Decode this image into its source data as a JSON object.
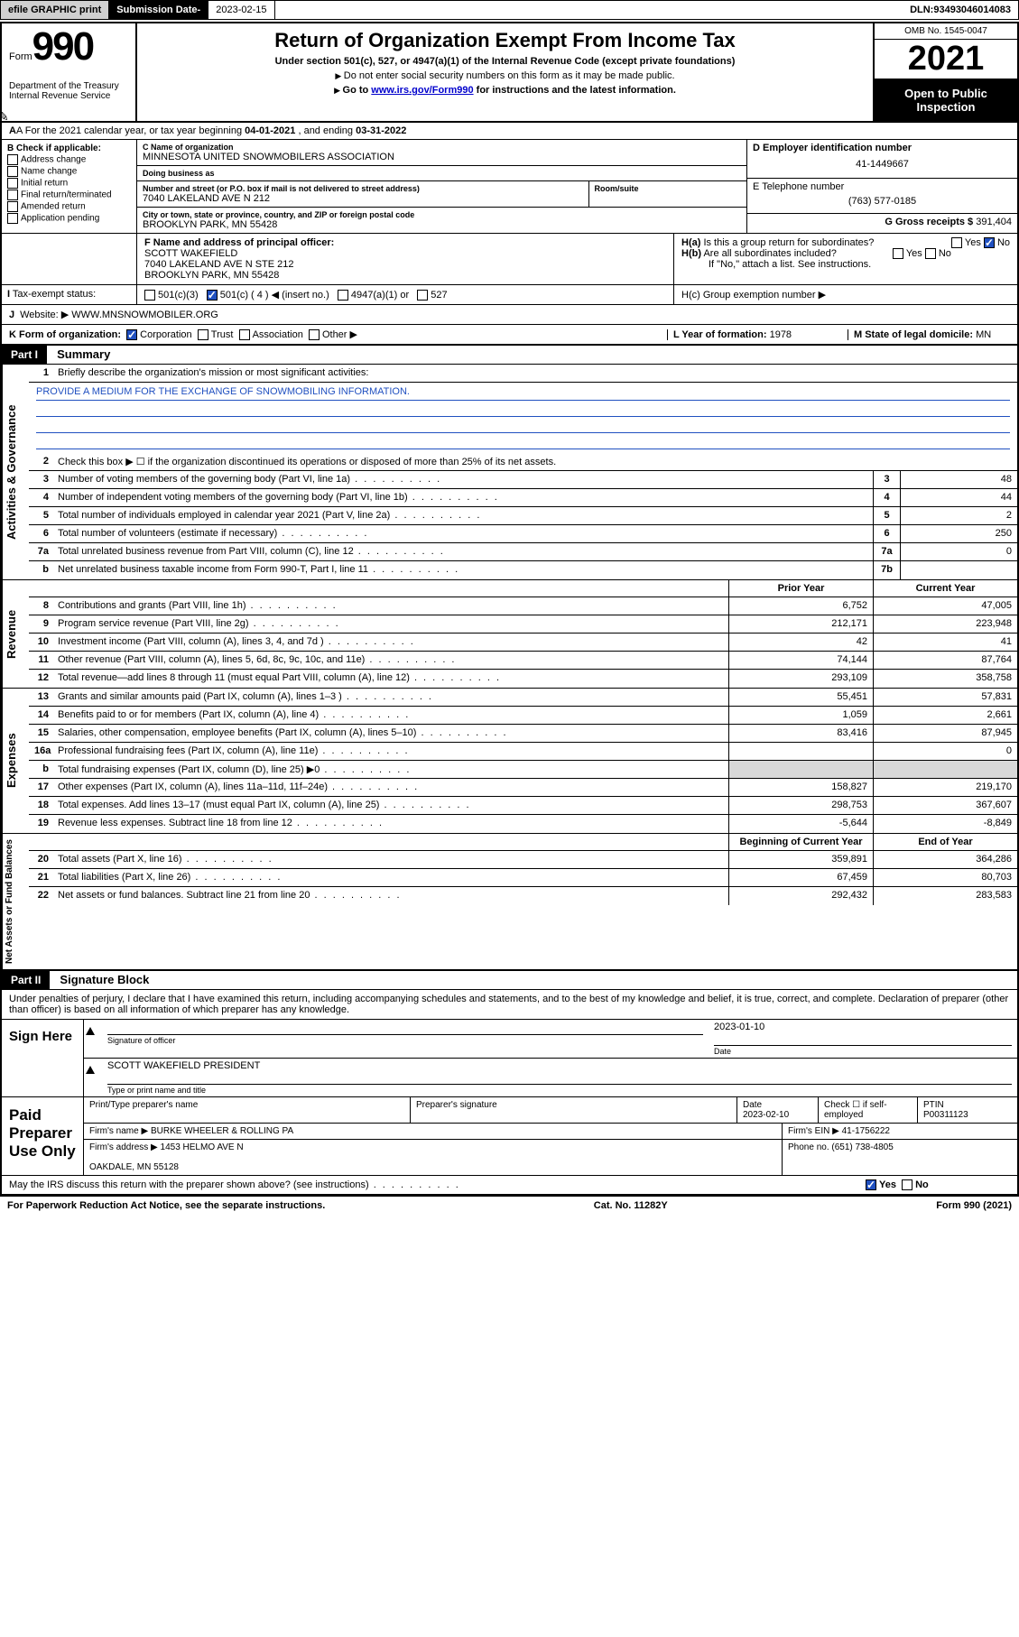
{
  "topbar": {
    "efile": "efile GRAPHIC print",
    "sub_lbl": "Submission Date",
    "sub_val": "2023-02-15",
    "dln_lbl": "DLN:",
    "dln_val": "93493046014083"
  },
  "header": {
    "form_word": "Form",
    "form_num": "990",
    "dept": "Department of the Treasury\nInternal Revenue Service",
    "title": "Return of Organization Exempt From Income Tax",
    "sub": "Under section 501(c), 527, or 4947(a)(1) of the Internal Revenue Code (except private foundations)",
    "sub2": "Do not enter social security numbers on this form as it may be made public.",
    "sub3_a": "Go to ",
    "sub3_link": "www.irs.gov/Form990",
    "sub3_b": " for instructions and the latest information.",
    "omb": "OMB No. 1545-0047",
    "year": "2021",
    "inspect": "Open to Public Inspection"
  },
  "row_a": {
    "text_a": "A For the 2021 calendar year, or tax year beginning ",
    "begin": "04-01-2021",
    "text_b": " , and ending ",
    "end": "03-31-2022"
  },
  "col_b": {
    "hdr": "B Check if applicable:",
    "items": [
      "Address change",
      "Name change",
      "Initial return",
      "Final return/terminated",
      "Amended return",
      "Application pending"
    ]
  },
  "c": {
    "name_lbl": "C Name of organization",
    "name": "MINNESOTA UNITED SNOWMOBILERS ASSOCIATION",
    "dba_lbl": "Doing business as",
    "dba": "",
    "street_lbl": "Number and street (or P.O. box if mail is not delivered to street address)",
    "street": "7040 LAKELAND AVE N 212",
    "room_lbl": "Room/suite",
    "city_lbl": "City or town, state or province, country, and ZIP or foreign postal code",
    "city": "BROOKLYN PARK, MN  55428"
  },
  "d": {
    "lbl": "D Employer identification number",
    "val": "41-1449667"
  },
  "e": {
    "lbl": "E Telephone number",
    "val": "(763) 577-0185"
  },
  "g": {
    "lbl": "G Gross receipts $",
    "val": "391,404"
  },
  "f": {
    "lbl": "F Name and address of principal officer:",
    "name": "SCOTT WAKEFIELD",
    "addr": "7040 LAKELAND AVE N STE 212\nBROOKLYN PARK, MN  55428"
  },
  "h": {
    "a": "H(a)  Is this a group return for subordinates?",
    "b": "H(b)  Are all subordinates included?",
    "b_note": "If \"No,\" attach a list. See instructions.",
    "c": "H(c)  Group exemption number ▶",
    "yes": "Yes",
    "no": "No"
  },
  "i": {
    "lbl": "Tax-exempt status:",
    "opts": [
      "501(c)(3)",
      "501(c) ( 4 ) ◀ (insert no.)",
      "4947(a)(1) or",
      "527"
    ]
  },
  "j": {
    "lbl": "Website: ▶",
    "val": "WWW.MNSNOWMOBILER.ORG"
  },
  "k": {
    "lbl": "K Form of organization:",
    "opts": [
      "Corporation",
      "Trust",
      "Association",
      "Other ▶"
    ]
  },
  "l": {
    "lbl": "L Year of formation:",
    "val": "1978"
  },
  "m": {
    "lbl": "M State of legal domicile:",
    "val": "MN"
  },
  "part1": {
    "num": "Part I",
    "title": "Summary"
  },
  "gov": {
    "tab": "Activities & Governance",
    "l1": "Briefly describe the organization's mission or most significant activities:",
    "mission": "PROVIDE A MEDIUM FOR THE EXCHANGE OF SNOWMOBILING INFORMATION.",
    "l2": "Check this box ▶ ☐  if the organization discontinued its operations or disposed of more than 25% of its net assets.",
    "rows": [
      {
        "n": "3",
        "t": "Number of voting members of the governing body (Part VI, line 1a)",
        "b": "3",
        "v": "48"
      },
      {
        "n": "4",
        "t": "Number of independent voting members of the governing body (Part VI, line 1b)",
        "b": "4",
        "v": "44"
      },
      {
        "n": "5",
        "t": "Total number of individuals employed in calendar year 2021 (Part V, line 2a)",
        "b": "5",
        "v": "2"
      },
      {
        "n": "6",
        "t": "Total number of volunteers (estimate if necessary)",
        "b": "6",
        "v": "250"
      },
      {
        "n": "7a",
        "t": "Total unrelated business revenue from Part VIII, column (C), line 12",
        "b": "7a",
        "v": "0"
      },
      {
        "n": "b",
        "t": "Net unrelated business taxable income from Form 990-T, Part I, line 11",
        "b": "7b",
        "v": ""
      }
    ]
  },
  "colhdr": {
    "prior": "Prior Year",
    "curr": "Current Year"
  },
  "rev": {
    "tab": "Revenue",
    "rows": [
      {
        "n": "8",
        "t": "Contributions and grants (Part VIII, line 1h)",
        "p": "6,752",
        "c": "47,005"
      },
      {
        "n": "9",
        "t": "Program service revenue (Part VIII, line 2g)",
        "p": "212,171",
        "c": "223,948"
      },
      {
        "n": "10",
        "t": "Investment income (Part VIII, column (A), lines 3, 4, and 7d )",
        "p": "42",
        "c": "41"
      },
      {
        "n": "11",
        "t": "Other revenue (Part VIII, column (A), lines 5, 6d, 8c, 9c, 10c, and 11e)",
        "p": "74,144",
        "c": "87,764"
      },
      {
        "n": "12",
        "t": "Total revenue—add lines 8 through 11 (must equal Part VIII, column (A), line 12)",
        "p": "293,109",
        "c": "358,758"
      }
    ]
  },
  "exp": {
    "tab": "Expenses",
    "rows": [
      {
        "n": "13",
        "t": "Grants and similar amounts paid (Part IX, column (A), lines 1–3 )",
        "p": "55,451",
        "c": "57,831"
      },
      {
        "n": "14",
        "t": "Benefits paid to or for members (Part IX, column (A), line 4)",
        "p": "1,059",
        "c": "2,661"
      },
      {
        "n": "15",
        "t": "Salaries, other compensation, employee benefits (Part IX, column (A), lines 5–10)",
        "p": "83,416",
        "c": "87,945"
      },
      {
        "n": "16a",
        "t": "Professional fundraising fees (Part IX, column (A), line 11e)",
        "p": "",
        "c": "0"
      },
      {
        "n": "b",
        "t": "Total fundraising expenses (Part IX, column (D), line 25) ▶0",
        "p": "shade",
        "c": "shade"
      },
      {
        "n": "17",
        "t": "Other expenses (Part IX, column (A), lines 11a–11d, 11f–24e)",
        "p": "158,827",
        "c": "219,170"
      },
      {
        "n": "18",
        "t": "Total expenses. Add lines 13–17 (must equal Part IX, column (A), line 25)",
        "p": "298,753",
        "c": "367,607"
      },
      {
        "n": "19",
        "t": "Revenue less expenses. Subtract line 18 from line 12",
        "p": "-5,644",
        "c": "-8,849"
      }
    ]
  },
  "na": {
    "tab": "Net Assets or Fund Balances",
    "hdr_p": "Beginning of Current Year",
    "hdr_c": "End of Year",
    "rows": [
      {
        "n": "20",
        "t": "Total assets (Part X, line 16)",
        "p": "359,891",
        "c": "364,286"
      },
      {
        "n": "21",
        "t": "Total liabilities (Part X, line 26)",
        "p": "67,459",
        "c": "80,703"
      },
      {
        "n": "22",
        "t": "Net assets or fund balances. Subtract line 21 from line 20",
        "p": "292,432",
        "c": "283,583"
      }
    ]
  },
  "part2": {
    "num": "Part II",
    "title": "Signature Block"
  },
  "sig": {
    "decl": "Under penalties of perjury, I declare that I have examined this return, including accompanying schedules and statements, and to the best of my knowledge and belief, it is true, correct, and complete. Declaration of preparer (other than officer) is based on all information of which preparer has any knowledge.",
    "here": "Sign Here",
    "off_lbl": "Signature of officer",
    "date_lbl": "Date",
    "date": "2023-01-10",
    "name": "SCOTT WAKEFIELD  PRESIDENT",
    "name_lbl": "Type or print name and title",
    "paid": "Paid Preparer Use Only",
    "pt_name_lbl": "Print/Type preparer's name",
    "pt_sig_lbl": "Preparer's signature",
    "pt_date_lbl": "Date",
    "pt_date": "2023-02-10",
    "pt_check": "Check ☐ if self-employed",
    "ptin_lbl": "PTIN",
    "ptin": "P00311123",
    "firm_name_lbl": "Firm's name   ▶",
    "firm_name": "BURKE WHEELER & ROLLING PA",
    "firm_ein_lbl": "Firm's EIN ▶",
    "firm_ein": "41-1756222",
    "firm_addr_lbl": "Firm's address ▶",
    "firm_addr": "1453 HELMO AVE N\n\nOAKDALE, MN  55128",
    "phone_lbl": "Phone no.",
    "phone": "(651) 738-4805",
    "discuss": "May the IRS discuss this return with the preparer shown above? (see instructions)"
  },
  "footer": {
    "left": "For Paperwork Reduction Act Notice, see the separate instructions.",
    "mid": "Cat. No. 11282Y",
    "right": "Form 990 (2021)"
  }
}
